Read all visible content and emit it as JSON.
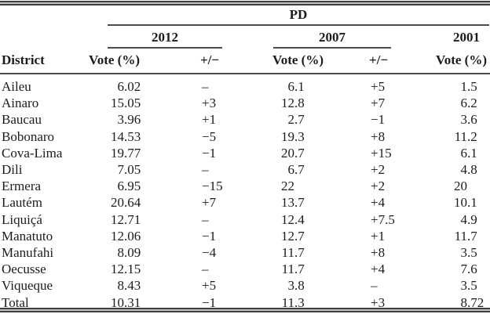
{
  "table": {
    "party": "PD",
    "district_header": "District",
    "groups": [
      {
        "year": "2012",
        "vote_label": "Vote (%)",
        "change_label": "+/−"
      },
      {
        "year": "2007",
        "vote_label": "Vote (%)",
        "change_label": "+/−"
      },
      {
        "year": "2001",
        "vote_label": "Vote (%)"
      }
    ],
    "rows": [
      {
        "district": "Aileu",
        "v2012": "6.02",
        "d2012": "–",
        "v2007": "6.1",
        "d2007": "+5",
        "v2001": "1.5"
      },
      {
        "district": "Ainaro",
        "v2012": "15.05",
        "d2012": "+3",
        "v2007": "12.8",
        "d2007": "+7",
        "v2001": "6.2"
      },
      {
        "district": "Baucau",
        "v2012": "3.96",
        "d2012": "+1",
        "v2007": "2.7",
        "d2007": "−1",
        "v2001": "3.6"
      },
      {
        "district": "Bobonaro",
        "v2012": "14.53",
        "d2012": "−5",
        "v2007": "19.3",
        "d2007": "+8",
        "v2001": "11.2"
      },
      {
        "district": "Cova-Lima",
        "v2012": "19.77",
        "d2012": "−1",
        "v2007": "20.7",
        "d2007": "+15",
        "v2001": "6.1"
      },
      {
        "district": "Dili",
        "v2012": "7.05",
        "d2012": "–",
        "v2007": "6.7",
        "d2007": "+2",
        "v2001": "4.8"
      },
      {
        "district": "Ermera",
        "v2012": "6.95",
        "d2012": "−15",
        "v2007": "22",
        "d2007": "+2",
        "v2001": "20"
      },
      {
        "district": "Lautém",
        "v2012": "20.64",
        "d2012": "+7",
        "v2007": "13.7",
        "d2007": "+4",
        "v2001": "10.1"
      },
      {
        "district": "Liquiçá",
        "v2012": "12.71",
        "d2012": "–",
        "v2007": "12.4",
        "d2007": "+7.5",
        "v2001": "4.9"
      },
      {
        "district": "Manatuto",
        "v2012": "12.06",
        "d2012": "−1",
        "v2007": "12.7",
        "d2007": "+1",
        "v2001": "11.7"
      },
      {
        "district": "Manufahi",
        "v2012": "8.09",
        "d2012": "−4",
        "v2007": "11.7",
        "d2007": "+8",
        "v2001": "3.5"
      },
      {
        "district": "Oecusse",
        "v2012": "12.15",
        "d2012": "–",
        "v2007": "11.7",
        "d2007": "+4",
        "v2001": "7.6"
      },
      {
        "district": "Viqueque",
        "v2012": "8.43",
        "d2012": "+5",
        "v2007": "3.8",
        "d2007": "–",
        "v2001": "3.5"
      },
      {
        "district": "Total",
        "v2012": "10.31",
        "d2012": "−1",
        "v2007": "11.3",
        "d2007": "+3",
        "v2001": "8.72"
      }
    ]
  },
  "colors": {
    "text": "#1c1c1c",
    "rule": "#4a4a4a"
  }
}
